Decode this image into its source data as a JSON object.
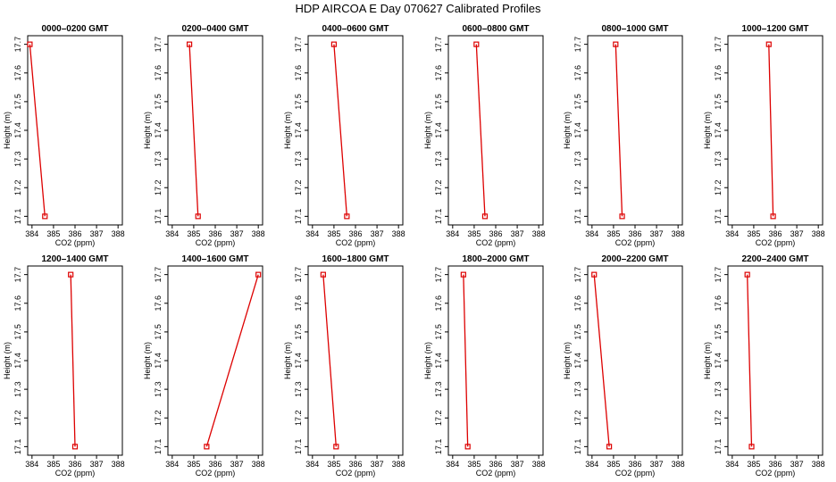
{
  "chart_data": {
    "type": "line",
    "title": "HDP  AIRCOA E  Day 070627  Calibrated Profiles",
    "xlabel": "CO2 (ppm)",
    "ylabel": "Height (m)",
    "xlim": [
      383.8,
      388.2
    ],
    "ylim": [
      17.07,
      17.73
    ],
    "xticks": [
      "384",
      "385",
      "386",
      "387",
      "388"
    ],
    "yticks": [
      "17.1",
      "17.2",
      "17.3",
      "17.4",
      "17.5",
      "17.6",
      "17.7"
    ],
    "series_color": "#dd0000",
    "panels": [
      {
        "title": "0000–0200 GMT",
        "x": [
          383.9,
          384.6
        ],
        "y": [
          17.7,
          17.1
        ]
      },
      {
        "title": "0200–0400 GMT",
        "x": [
          384.8,
          385.2
        ],
        "y": [
          17.7,
          17.1
        ]
      },
      {
        "title": "0400–0600 GMT",
        "x": [
          385.0,
          385.6
        ],
        "y": [
          17.7,
          17.1
        ]
      },
      {
        "title": "0600–0800 GMT",
        "x": [
          385.1,
          385.5
        ],
        "y": [
          17.7,
          17.1
        ]
      },
      {
        "title": "0800–1000 GMT",
        "x": [
          385.1,
          385.4
        ],
        "y": [
          17.7,
          17.1
        ]
      },
      {
        "title": "1000–1200 GMT",
        "x": [
          385.7,
          385.9
        ],
        "y": [
          17.7,
          17.1
        ]
      },
      {
        "title": "1200–1400 GMT",
        "x": [
          385.8,
          386.0
        ],
        "y": [
          17.7,
          17.1
        ]
      },
      {
        "title": "1400–1600 GMT",
        "x": [
          388.0,
          385.6
        ],
        "y": [
          17.7,
          17.1
        ]
      },
      {
        "title": "1600–1800 GMT",
        "x": [
          384.5,
          385.1
        ],
        "y": [
          17.7,
          17.1
        ]
      },
      {
        "title": "1800–2000 GMT",
        "x": [
          384.5,
          384.7
        ],
        "y": [
          17.7,
          17.1
        ]
      },
      {
        "title": "2000–2200 GMT",
        "x": [
          384.1,
          384.8
        ],
        "y": [
          17.7,
          17.1
        ]
      },
      {
        "title": "2200–2400 GMT",
        "x": [
          384.7,
          384.9
        ],
        "y": [
          17.7,
          17.1
        ]
      }
    ]
  }
}
